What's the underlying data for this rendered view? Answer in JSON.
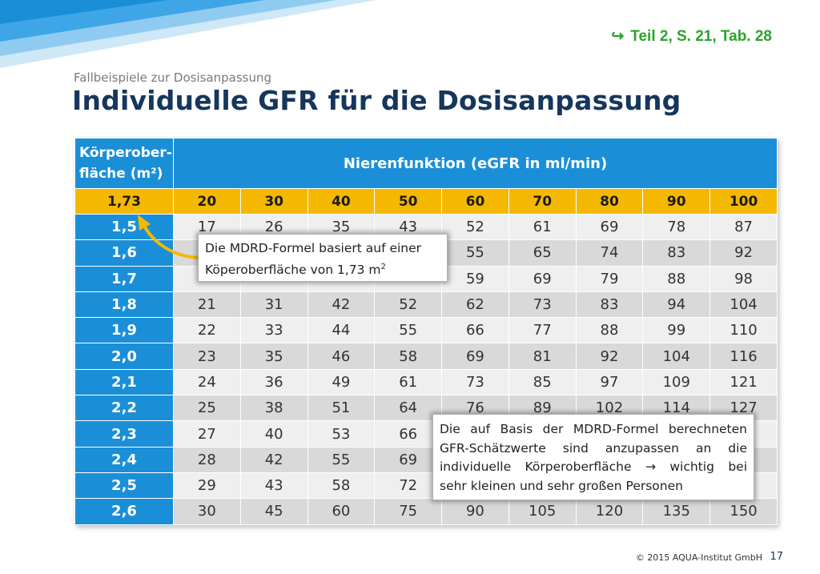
{
  "reference": {
    "arrow": "↪",
    "text": "Teil  2, S. 21, Tab. 28"
  },
  "subtitle": "Fallbeispiele zur Dosisanpassung",
  "title": "Individuelle GFR für die Dosisanpassung",
  "table": {
    "header_left_line1": "Körperober-",
    "header_left_line2": "fläche (m²)",
    "header_main": "Nierenfunktion (eGFR in ml/min)",
    "reference_row": {
      "label": "1,73",
      "values": [
        "20",
        "30",
        "40",
        "50",
        "60",
        "70",
        "80",
        "90",
        "100"
      ]
    },
    "rows": [
      {
        "label": "1,5",
        "values": [
          "17",
          "26",
          "35",
          "43",
          "52",
          "61",
          "69",
          "78",
          "87"
        ]
      },
      {
        "label": "1,6",
        "values": [
          "",
          "",
          "",
          "",
          "55",
          "65",
          "74",
          "83",
          "92"
        ]
      },
      {
        "label": "1,7",
        "values": [
          "",
          "",
          "",
          "",
          "59",
          "69",
          "79",
          "88",
          "98"
        ]
      },
      {
        "label": "1,8",
        "values": [
          "21",
          "31",
          "42",
          "52",
          "62",
          "73",
          "83",
          "94",
          "104"
        ]
      },
      {
        "label": "1,9",
        "values": [
          "22",
          "33",
          "44",
          "55",
          "66",
          "77",
          "88",
          "99",
          "110"
        ]
      },
      {
        "label": "2,0",
        "values": [
          "23",
          "35",
          "46",
          "58",
          "69",
          "81",
          "92",
          "104",
          "116"
        ]
      },
      {
        "label": "2,1",
        "values": [
          "24",
          "36",
          "49",
          "61",
          "73",
          "85",
          "97",
          "109",
          "121"
        ]
      },
      {
        "label": "2,2",
        "values": [
          "25",
          "38",
          "51",
          "64",
          "76",
          "89",
          "102",
          "114",
          "127"
        ]
      },
      {
        "label": "2,3",
        "values": [
          "27",
          "40",
          "53",
          "66",
          "",
          "",
          "",
          "",
          ""
        ]
      },
      {
        "label": "2,4",
        "values": [
          "28",
          "42",
          "55",
          "69",
          "",
          "",
          "",
          "",
          ""
        ]
      },
      {
        "label": "2,5",
        "values": [
          "29",
          "43",
          "58",
          "72",
          "",
          "",
          "",
          "",
          ""
        ]
      },
      {
        "label": "2,6",
        "values": [
          "30",
          "45",
          "60",
          "75",
          "90",
          "105",
          "120",
          "135",
          "150"
        ]
      }
    ]
  },
  "callout1": {
    "line1": "Die MDRD-Formel basiert auf einer",
    "line2": "Köperoberfläche von 1,73 m",
    "sup": "2"
  },
  "callout2": {
    "line1": "Die auf Basis der MDRD-Formel berechneten",
    "line2": "GFR-Schätzwerte sind anzupassen an die",
    "line3": "individuelle Körperoberfläche → wichtig bei",
    "line4": "sehr kleinen und sehr großen Personen"
  },
  "footer": {
    "copyright": "© 2015 AQUA-Institut GmbH",
    "page": "17"
  },
  "colors": {
    "header_blue": "#1a8fd8",
    "yellow": "#f5b800",
    "title_navy": "#16365c",
    "ref_green": "#2aa52a"
  }
}
